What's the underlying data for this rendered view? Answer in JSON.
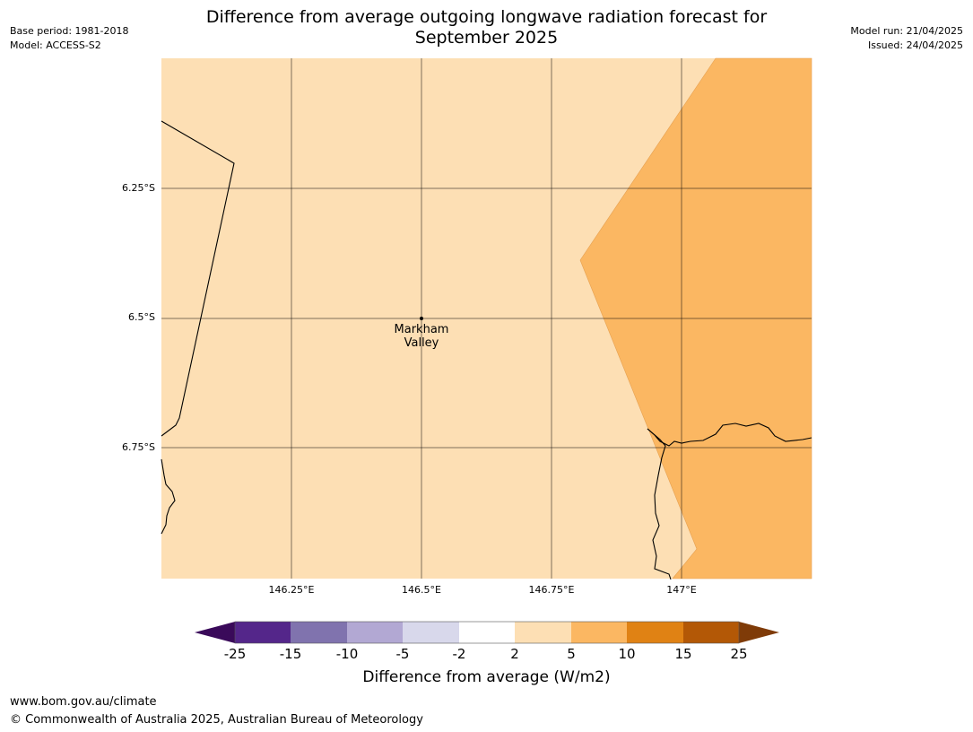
{
  "title_line1": "Difference from average outgoing longwave radiation forecast for",
  "title_line2": "September 2025",
  "meta_left": {
    "base_period": "Base period: 1981-2018",
    "model": "Model: ACCESS-S2"
  },
  "meta_right": {
    "model_run": "Model run: 21/04/2025",
    "issued": "Issued: 24/04/2025"
  },
  "map": {
    "lat_labels": [
      "6.25°S",
      "6.5°S",
      "6.75°S"
    ],
    "lon_labels": [
      "146.25°E",
      "146.5°E",
      "146.75°E",
      "147°E"
    ],
    "place": {
      "line1": "Markham",
      "line2": "Valley"
    },
    "colors": {
      "band_2_5": "#fddfb4",
      "band_5_10": "#fbb762"
    }
  },
  "colorbar": {
    "ticks": [
      "-25",
      "-15",
      "-10",
      "-5",
      "-2",
      "2",
      "5",
      "10",
      "15",
      "25"
    ],
    "colors": [
      "#3a0a5a",
      "#54268a",
      "#8073ae",
      "#b2a8d3",
      "#d8d8eb",
      "#ffffff",
      "#fddfb4",
      "#fbb762",
      "#e08214",
      "#b35806",
      "#7f3b08"
    ],
    "label": "Difference from average (W/m2)"
  },
  "footer": {
    "url": "www.bom.gov.au/climate",
    "copyright": "© Commonwealth of Australia 2025, Australian Bureau of Meteorology"
  }
}
